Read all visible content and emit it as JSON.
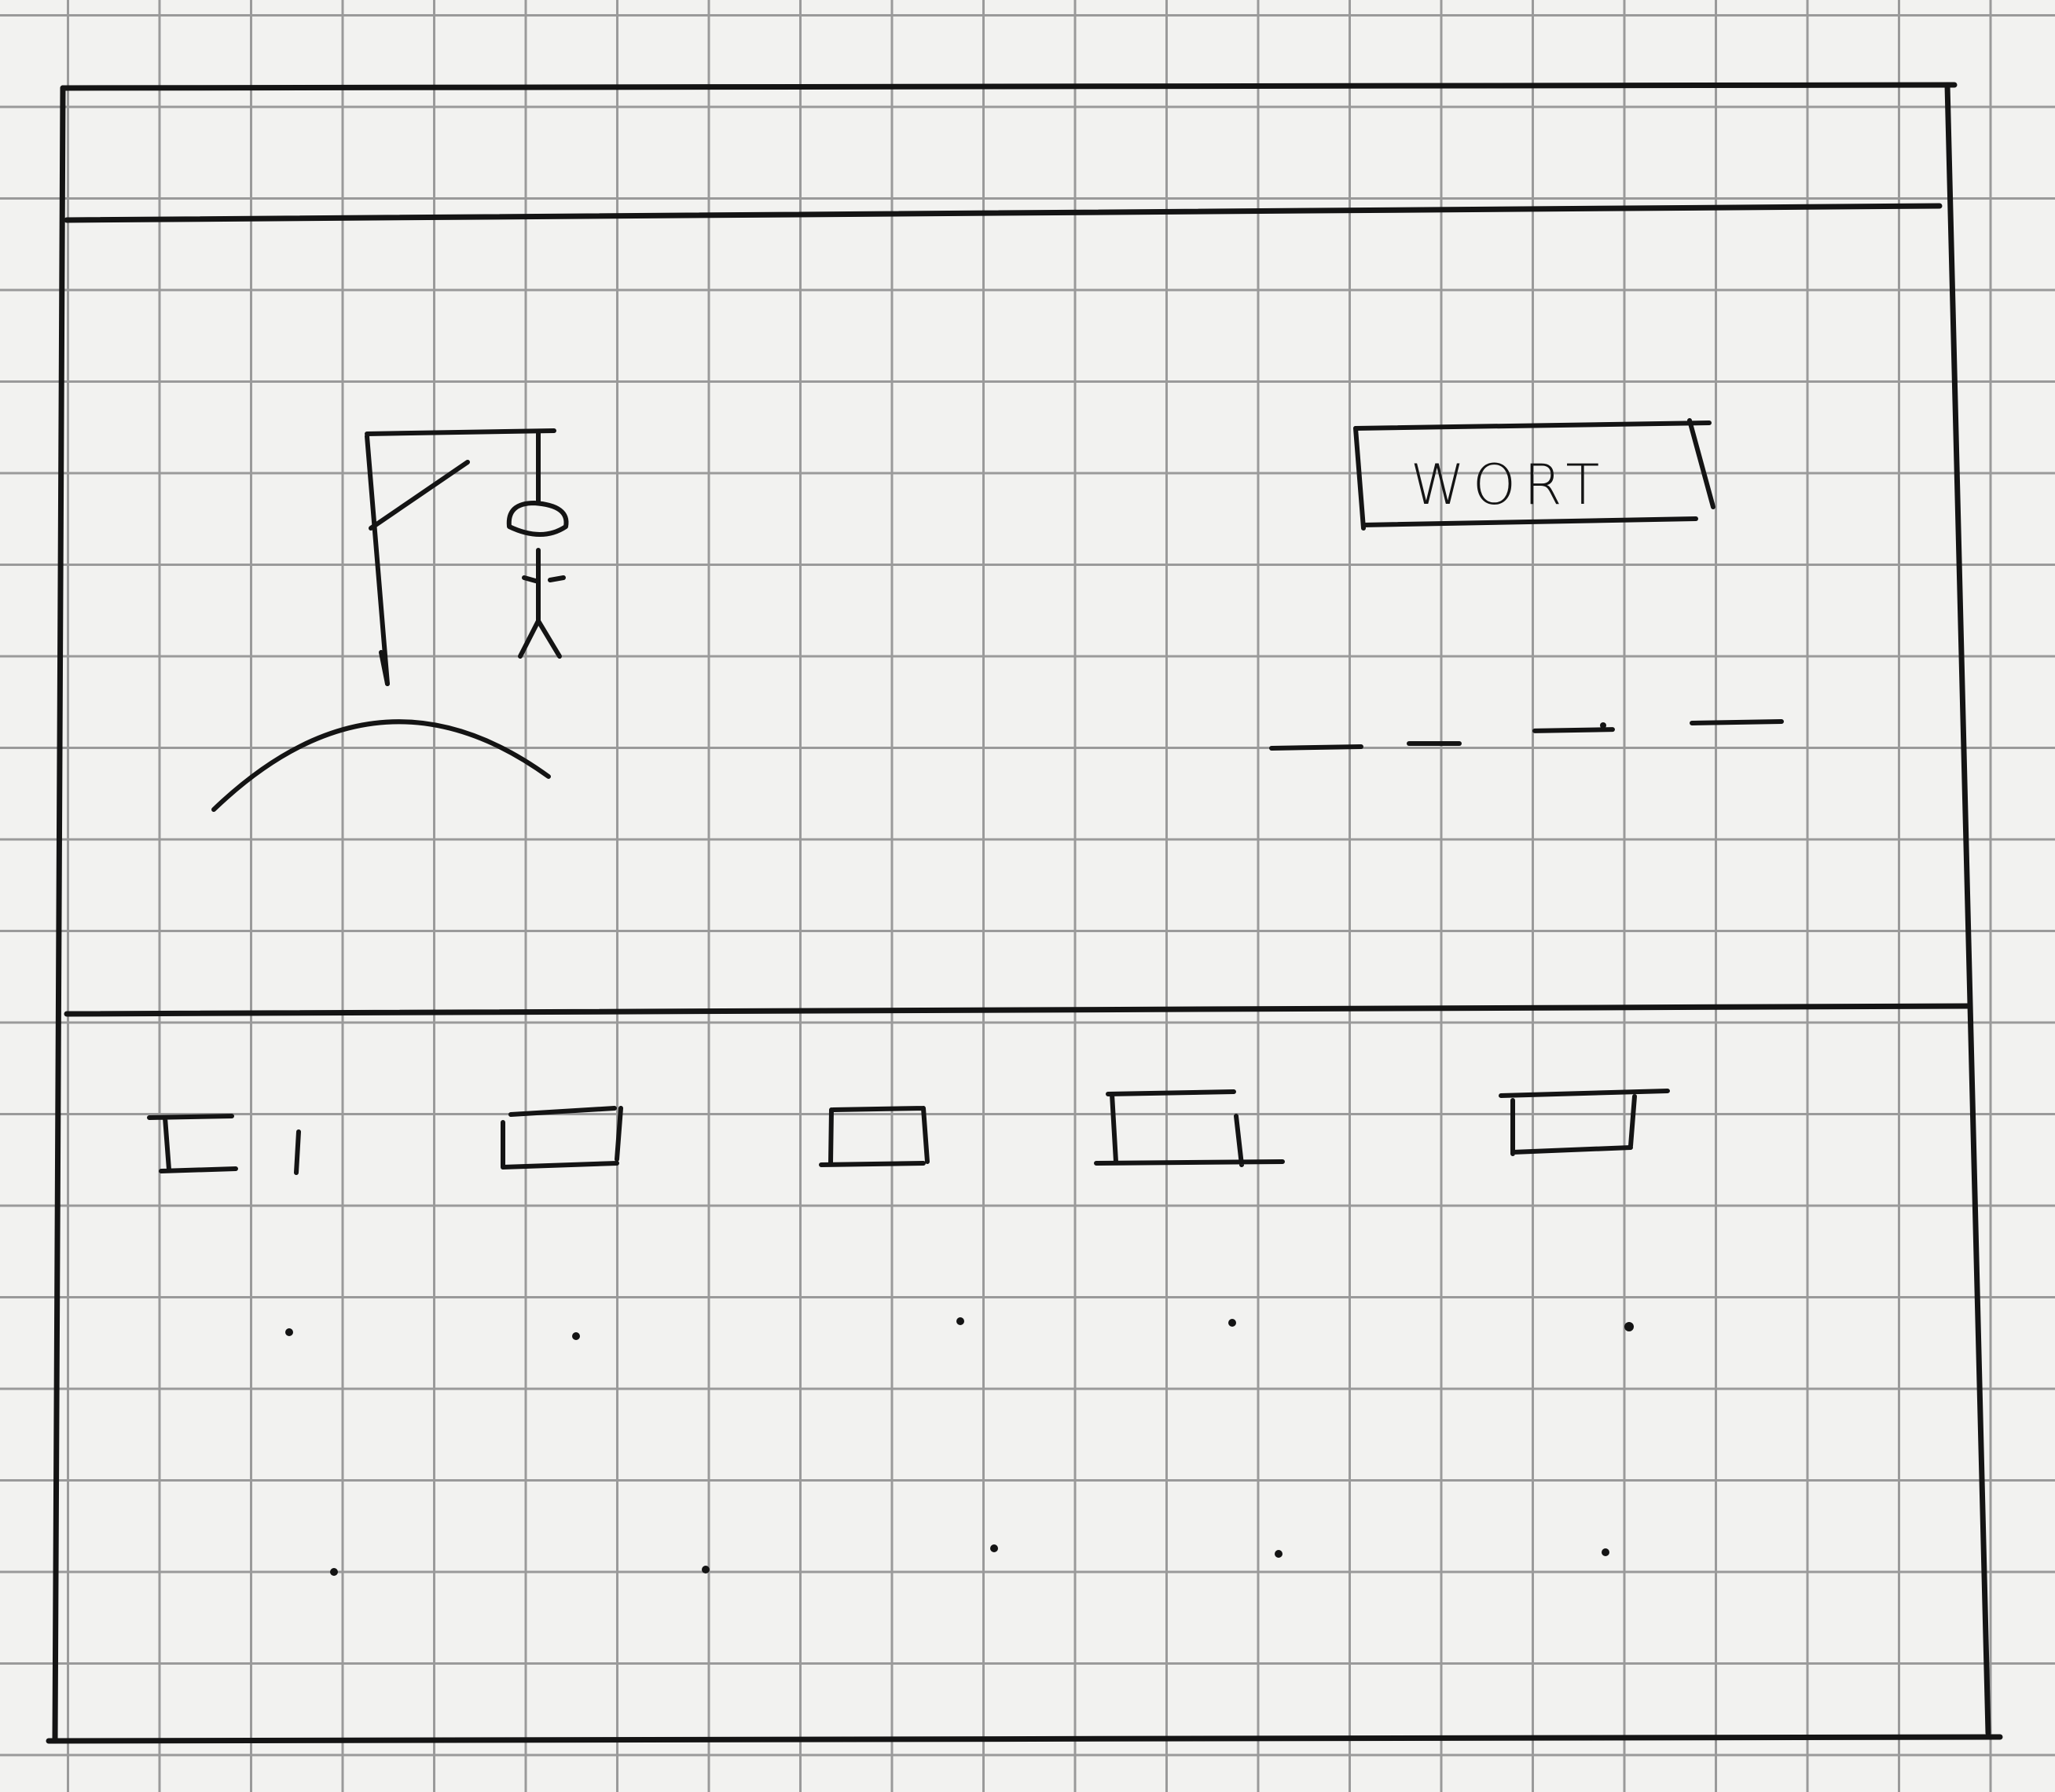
{
  "hangman": {
    "word_box_label": "WORT",
    "letter_slots": [
      "",
      "",
      "",
      ""
    ],
    "letter_buttons": [
      "",
      "",
      "",
      "",
      ""
    ]
  }
}
